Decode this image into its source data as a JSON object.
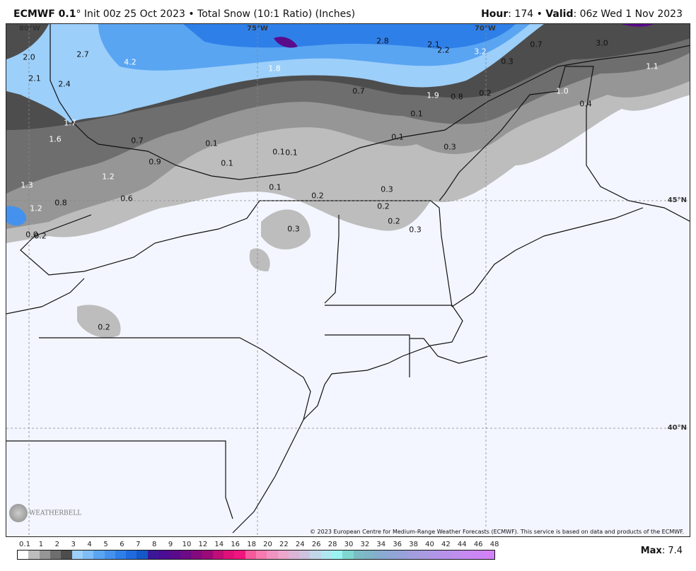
{
  "header": {
    "model": "ECMWF 0.1",
    "degree": "°",
    "init": " Init 00z 25 Oct 2023 • Total Snow (10:1 Ratio) (Inches)",
    "hour_label": "Hour",
    "hour_value": ": 174 • ",
    "valid_label": "Valid",
    "valid_value": ": 06z Wed 1 Nov 2023"
  },
  "map": {
    "axis_labels": [
      "80°W",
      "75°W",
      "70°W",
      "45°N",
      "40°N"
    ],
    "contour_labels": [
      "2.7",
      "4.2",
      "2.0",
      "2.1",
      "2.4",
      "1.8",
      "2.8",
      "2.1",
      "2.2",
      "3.2",
      "0.7",
      "3.0",
      "1.1",
      "0.3",
      "0.7",
      "1.9",
      "0.8",
      "0.2",
      "1.0",
      "0.4",
      "0.1",
      "1.7",
      "1.6",
      "0.7",
      "0.1",
      "0.1",
      "0.9",
      "0.1",
      "0.1",
      "0.1",
      "0.3",
      "1.2",
      "1.3",
      "0.6",
      "0.8",
      "1.2",
      "0.1",
      "0.2",
      "0.3",
      "0.2",
      "0.2",
      "0.3",
      "0.3",
      "0.0",
      "0.2",
      "0.2"
    ],
    "copyright": "© 2023 European Centre for Medium-Range Weather Forecasts (ECMWF). This service is based on data and products of the ECMWF.",
    "logo": "WeatherBELL"
  },
  "colorbar": {
    "tick_labels": [
      "0.1",
      "1",
      "2",
      "3",
      "4",
      "5",
      "6",
      "7",
      "8",
      "9",
      "10",
      "12",
      "14",
      "16",
      "18",
      "20",
      "22",
      "24",
      "26",
      "28",
      "30",
      "32",
      "34",
      "36",
      "38",
      "40",
      "42",
      "44",
      "46",
      "48"
    ],
    "colors": [
      "#ffffff",
      "#bdbdbd",
      "#969696",
      "#6e6e6e",
      "#4d4d4d",
      "#9ccffa",
      "#7fbdf7",
      "#5aa5f2",
      "#4592ee",
      "#2f7fe8",
      "#1f6ae0",
      "#1458c8",
      "#3b1898",
      "#4a0d94",
      "#5a0b8c",
      "#6d0a86",
      "#820a7e",
      "#9a0a78",
      "#c10d78",
      "#e0107a",
      "#f0157f",
      "#f55a9c",
      "#f77bb0",
      "#f193c2",
      "#eda6cc",
      "#dcb4d6",
      "#cfc2e0",
      "#c2d6ea",
      "#b0e6f2",
      "#9cf2f2",
      "#7fd8d0",
      "#7cbcc4",
      "#80b4c8",
      "#88acd0",
      "#90a6d6",
      "#98a2da",
      "#a29ede",
      "#aa9ae2",
      "#b196e6",
      "#b892ea",
      "#bf8eee",
      "#c68af2",
      "#cc86f4",
      "#d282f6"
    ],
    "max_label": "Max",
    "max_value": ": 7.4"
  }
}
